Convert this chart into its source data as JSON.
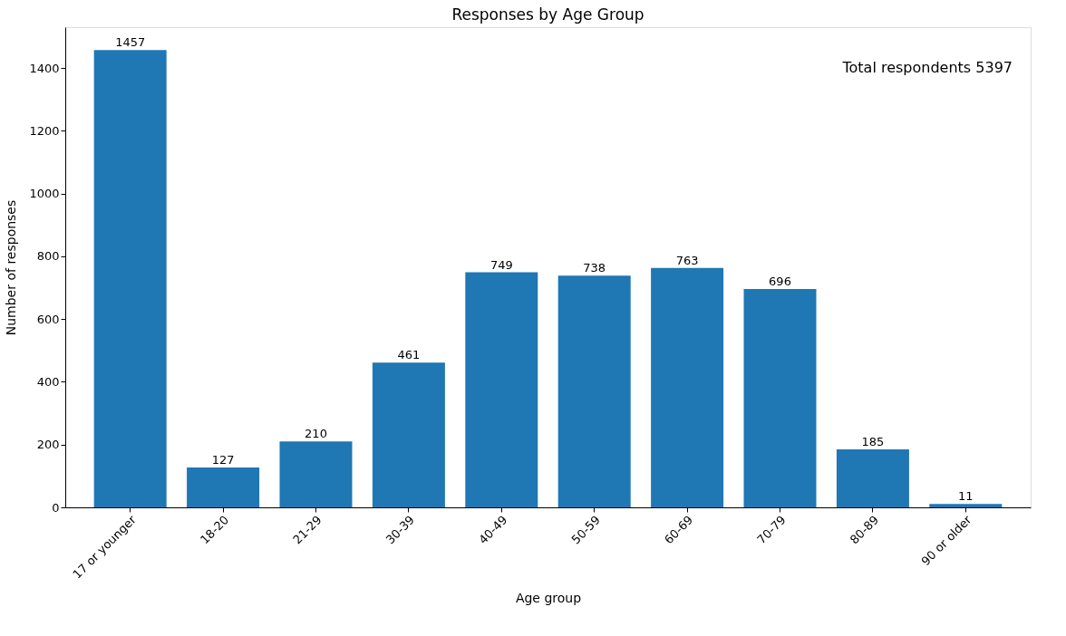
{
  "chart_data": {
    "type": "bar",
    "title": "Responses by Age Group",
    "xlabel": "Age group",
    "ylabel": "Number of responses",
    "categories": [
      "17 or younger",
      "18-20",
      "21-29",
      "30-39",
      "40-49",
      "50-59",
      "60-69",
      "70-79",
      "80-89",
      "90 or older"
    ],
    "values": [
      1457,
      127,
      210,
      461,
      749,
      738,
      763,
      696,
      185,
      11
    ],
    "color": "#1f77b4",
    "ylim": [
      0,
      1530
    ],
    "yticks": [
      0,
      200,
      400,
      600,
      800,
      1000,
      1200,
      1400
    ],
    "grid": false,
    "data_labels": true,
    "annotations": [
      "Total respondents 5397"
    ]
  }
}
